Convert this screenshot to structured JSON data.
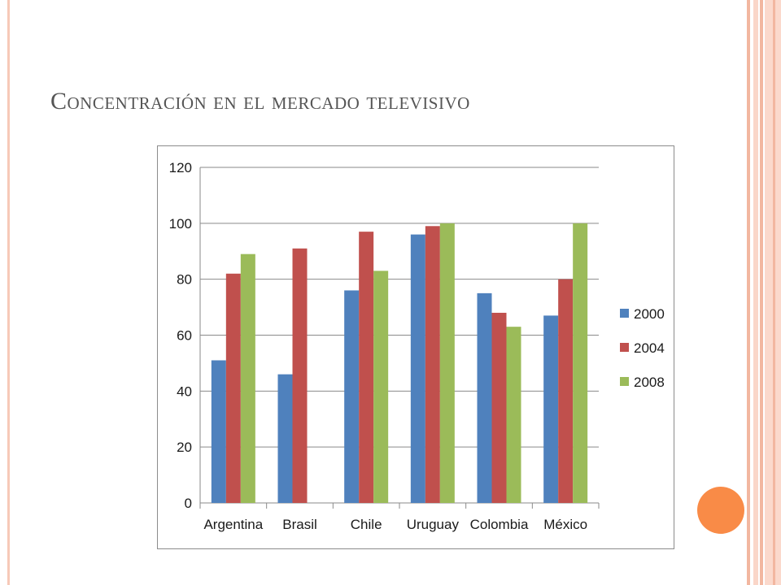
{
  "slide": {
    "title": "Concentración en el mercado televisivo"
  },
  "colors": {
    "series_2000": "#4f81bd",
    "series_2004": "#c0504d",
    "series_2008": "#9bbb59",
    "accent_dot": "#f98b47"
  },
  "chart_data": {
    "type": "bar",
    "categories": [
      "Argentina",
      "Brasil",
      "Chile",
      "Uruguay",
      "Colombia",
      "México"
    ],
    "series": [
      {
        "name": "2000",
        "values": [
          51,
          46,
          76,
          96,
          75,
          67
        ]
      },
      {
        "name": "2004",
        "values": [
          82,
          91,
          97,
          99,
          68,
          80
        ]
      },
      {
        "name": "2008",
        "values": [
          89,
          null,
          83,
          100,
          63,
          100
        ]
      }
    ],
    "ylim": [
      0,
      120
    ],
    "yticks": [
      0,
      20,
      40,
      60,
      80,
      100,
      120
    ],
    "grid": true,
    "legend": "right"
  }
}
